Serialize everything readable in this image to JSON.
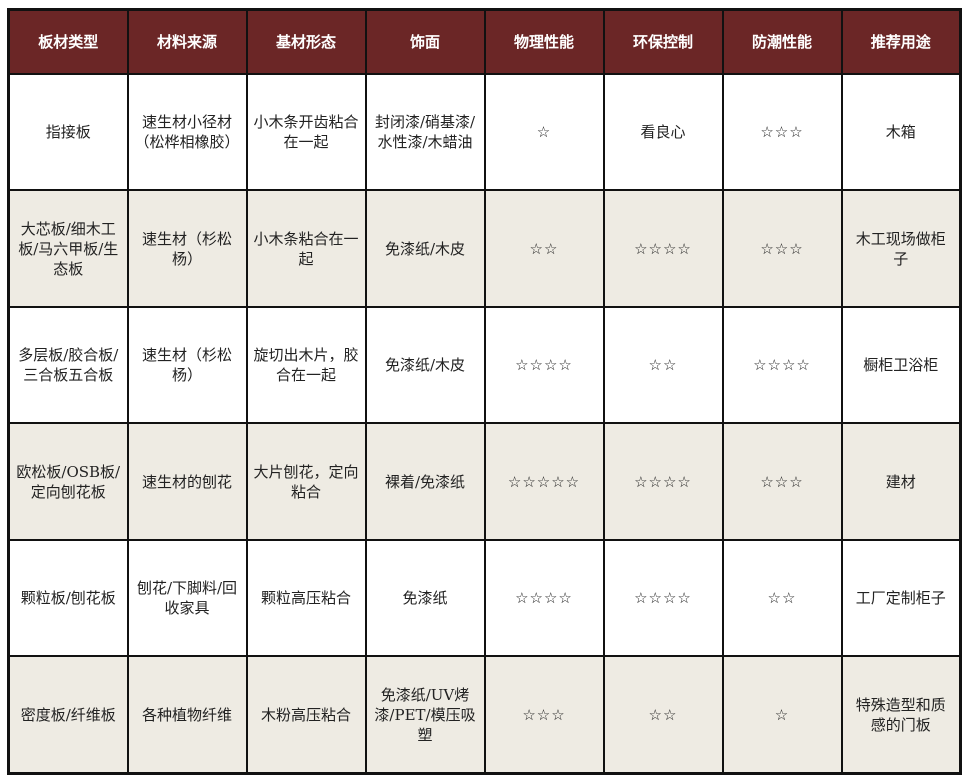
{
  "table": {
    "headers": [
      "板材类型",
      "材料来源",
      "基材形态",
      "饰面",
      "物理性能",
      "环保控制",
      "防潮性能",
      "推荐用途"
    ],
    "rows": [
      [
        "指接板",
        "速生材小径材（松桦相橡胶）",
        "小木条开齿粘合在一起",
        "封闭漆/硝基漆/水性漆/木蜡油",
        "☆",
        "看良心",
        "☆☆☆",
        "木箱"
      ],
      [
        "大芯板/细木工板/马六甲板/生态板",
        "速生材（杉松杨）",
        "小木条粘合在一起",
        "免漆纸/木皮",
        "☆☆",
        "☆☆☆☆",
        "☆☆☆",
        "木工现场做柜子"
      ],
      [
        "多层板/胶合板/三合板五合板",
        "速生材（杉松杨）",
        "旋切出木片，胶合在一起",
        "免漆纸/木皮",
        "☆☆☆☆",
        "☆☆",
        "☆☆☆☆",
        "橱柜卫浴柜"
      ],
      [
        "欧松板/OSB板/定向刨花板",
        "速生材的刨花",
        "大片刨花，定向粘合",
        "裸着/免漆纸",
        "☆☆☆☆☆",
        "☆☆☆☆",
        "☆☆☆",
        "建材"
      ],
      [
        "颗粒板/刨花板",
        "刨花/下脚料/回收家具",
        "颗粒高压粘合",
        "免漆纸",
        "☆☆☆☆",
        "☆☆☆☆",
        "☆☆",
        "工厂定制柜子"
      ],
      [
        "密度板/纤维板",
        "各种植物纤维",
        "木粉高压粘合",
        "免漆纸/UV烤漆/PET/模压吸塑",
        "☆☆☆",
        "☆☆",
        "☆",
        "特殊造型和质感的门板"
      ]
    ]
  },
  "colors": {
    "header_bg": "#6b2626",
    "alt_row_bg": "#eeebe3"
  }
}
